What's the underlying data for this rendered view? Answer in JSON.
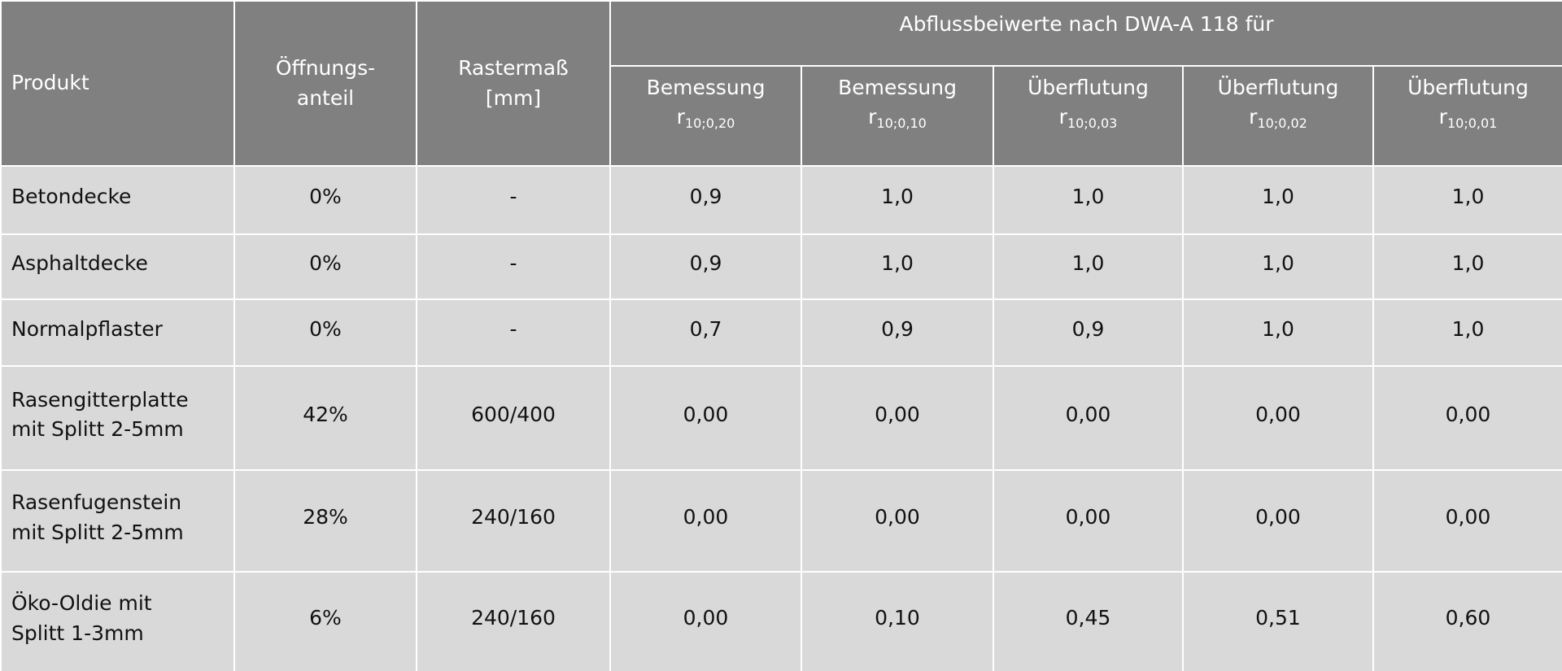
{
  "table": {
    "header": {
      "product": "Produkt",
      "opening": [
        "Öffnungs-",
        "anteil"
      ],
      "grid": [
        "Rastermaß",
        "[mm]"
      ],
      "group": "Abflussbeiwerte nach DWA-A 118 für",
      "columns": [
        {
          "label": "Bemessung",
          "symbol": "r",
          "subscript": "10;0,20"
        },
        {
          "label": "Bemessung",
          "symbol": "r",
          "subscript": "10;0,10"
        },
        {
          "label": "Überflutung",
          "symbol": "r",
          "subscript": "10;0,03"
        },
        {
          "label": "Überflutung",
          "symbol": "r",
          "subscript": "10;0,02"
        },
        {
          "label": "Überflutung",
          "symbol": "r",
          "subscript": "10;0,01"
        }
      ]
    },
    "rows": [
      [
        [
          "Betondecke"
        ],
        "0%",
        "-",
        "0,9",
        "1,0",
        "1,0",
        "1,0",
        "1,0"
      ],
      [
        [
          "Asphaltdecke"
        ],
        "0%",
        "-",
        "0,9",
        "1,0",
        "1,0",
        "1,0",
        "1,0"
      ],
      [
        [
          "Normalpflaster"
        ],
        "0%",
        "-",
        "0,7",
        "0,9",
        "0,9",
        "1,0",
        "1,0"
      ],
      [
        [
          "Rasengitterplatte",
          "mit Splitt 2-5mm"
        ],
        "42%",
        "600/400",
        "0,00",
        "0,00",
        "0,00",
        "0,00",
        "0,00"
      ],
      [
        [
          "Rasenfugenstein",
          "mit Splitt 2-5mm"
        ],
        "28%",
        "240/160",
        "0,00",
        "0,00",
        "0,00",
        "0,00",
        "0,00"
      ],
      [
        [
          "Öko-Oldie mit",
          "Splitt 1-3mm"
        ],
        "6%",
        "240/160",
        "0,00",
        "0,10",
        "0,45",
        "0,51",
        "0,60"
      ]
    ]
  }
}
